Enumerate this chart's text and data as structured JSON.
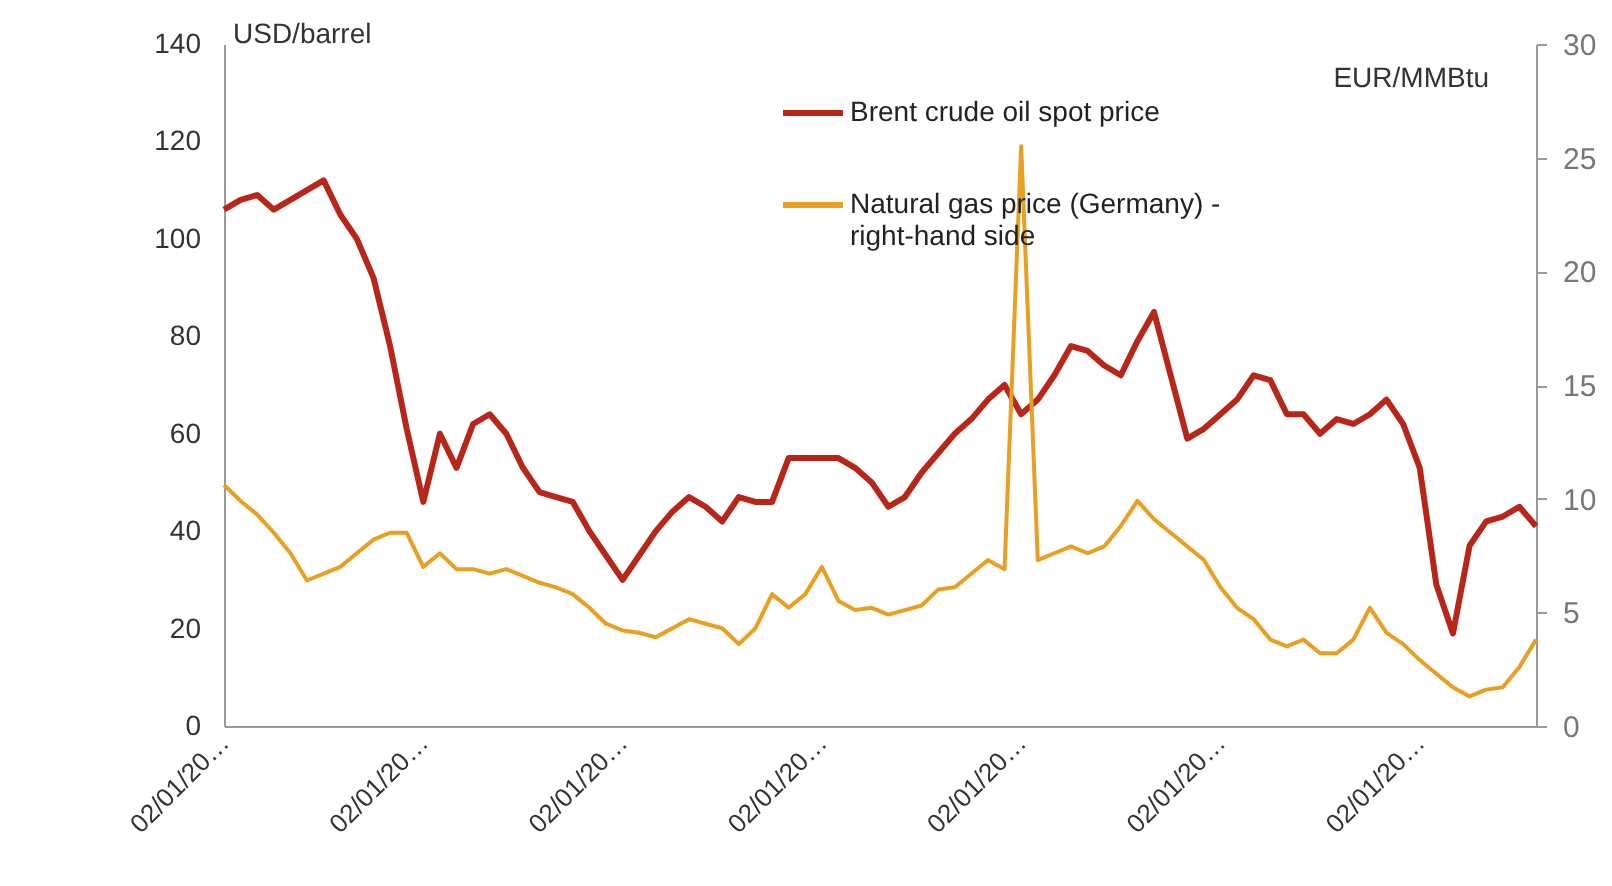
{
  "chart_data": {
    "type": "line",
    "ylabel": "USD/barrel",
    "y2label": "EUR/MMBtu",
    "categories": [
      "02/01/20…",
      null,
      null,
      null,
      null,
      null,
      null,
      null,
      null,
      null,
      null,
      null,
      "02/01/20…",
      null,
      null,
      null,
      null,
      null,
      null,
      null,
      null,
      null,
      null,
      null,
      "02/01/20…",
      null,
      null,
      null,
      null,
      null,
      null,
      null,
      null,
      null,
      null,
      null,
      "02/01/20…",
      null,
      null,
      null,
      null,
      null,
      null,
      null,
      null,
      null,
      null,
      null,
      "02/01/20…",
      null,
      null,
      null,
      null,
      null,
      null,
      null,
      null,
      null,
      null,
      null,
      "02/01/20…",
      null,
      null,
      null,
      null,
      null,
      null,
      null,
      null,
      null,
      null,
      null,
      "02/01/20…",
      null,
      null,
      null,
      null,
      null,
      null,
      null
    ],
    "series": [
      {
        "name": "Brent crude oil spot price",
        "color": "#b8261a",
        "values": [
          106,
          108,
          109,
          106,
          108,
          110,
          112,
          105,
          100,
          92,
          78,
          61,
          46,
          60,
          53,
          62,
          64,
          60,
          53,
          48,
          47,
          46,
          40,
          35,
          30,
          35,
          40,
          44,
          47,
          45,
          42,
          47,
          46,
          46,
          55,
          55,
          55,
          55,
          53,
          50,
          45,
          47,
          52,
          56,
          60,
          63,
          67,
          70,
          64,
          67,
          72,
          78,
          77,
          74,
          72,
          79,
          85,
          72,
          59,
          61,
          64,
          67,
          72,
          71,
          64,
          64,
          60,
          63,
          62,
          64,
          67,
          62,
          53,
          29,
          19,
          37,
          42,
          43,
          45,
          41
        ]
      },
      {
        "name": "Natural gas price (Germany) - right-hand side",
        "color": "#e89f22",
        "axis": "y2",
        "values": [
          10.6,
          9.9,
          9.3,
          8.5,
          7.6,
          6.4,
          6.7,
          7.0,
          7.6,
          8.2,
          8.5,
          8.5,
          7.0,
          7.6,
          6.9,
          6.9,
          6.7,
          6.9,
          6.6,
          6.3,
          6.1,
          5.8,
          5.2,
          4.5,
          4.2,
          4.1,
          3.9,
          4.3,
          4.7,
          4.5,
          4.3,
          3.6,
          4.3,
          5.8,
          5.2,
          5.8,
          7.0,
          5.5,
          5.1,
          5.2,
          4.9,
          5.1,
          5.3,
          6.0,
          6.1,
          6.7,
          7.3,
          6.9,
          25.5,
          7.3,
          7.6,
          7.9,
          7.6,
          7.9,
          8.8,
          9.9,
          9.1,
          8.5,
          7.9,
          7.3,
          6.1,
          5.2,
          4.7,
          3.8,
          3.5,
          3.8,
          3.2,
          3.2,
          3.8,
          5.2,
          4.1,
          3.6,
          2.9,
          2.3,
          1.7,
          1.3,
          1.6,
          1.7,
          2.6,
          3.8
        ]
      }
    ],
    "ylim": [
      0,
      140
    ],
    "yticks": [
      0,
      20,
      40,
      60,
      80,
      100,
      120,
      140
    ],
    "y2lim": [
      0,
      30
    ],
    "y2ticks": [
      0,
      5,
      10,
      15,
      20,
      25,
      30
    ],
    "legend": "top"
  }
}
